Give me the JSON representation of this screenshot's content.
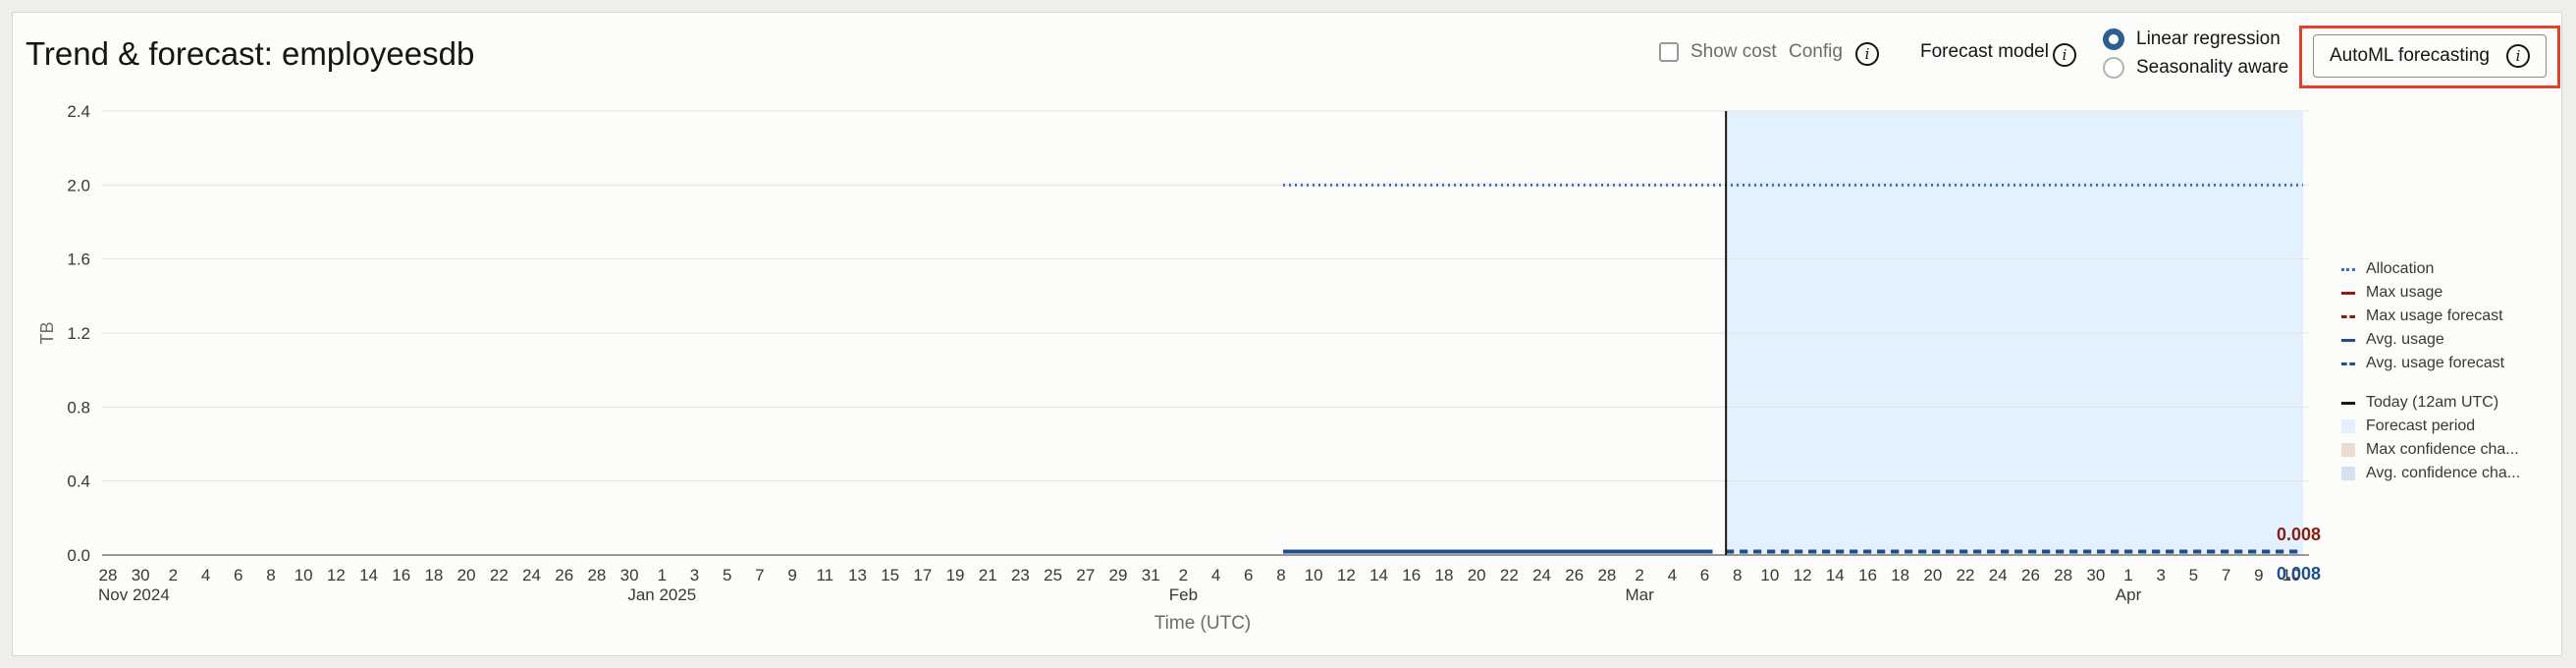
{
  "header": {
    "title": "Trend & forecast: employeesdb",
    "show_cost_label": "Show cost",
    "config_label": "Config",
    "info_glyph": "i",
    "forecast_model_label": "Forecast model",
    "radio_linear": "Linear regression",
    "radio_seasonality": "Seasonality aware",
    "automl_button": "AutoML forecasting"
  },
  "colors": {
    "allocation": "#2f6fd6",
    "max_usage": "#8b1e12",
    "avg_usage": "#1f4e8c",
    "today_line": "#161513",
    "forecast_period": "#e3f0fd",
    "max_confidence": "#eadccf",
    "avg_confidence": "#d6e1ee",
    "highlight": "#e0412d"
  },
  "chart_data": {
    "type": "line",
    "ylabel": "TB",
    "xlabel": "Time (UTC)",
    "ylim": [
      0,
      2.4
    ],
    "y_ticks": [
      "2.4",
      "2.0",
      "1.6",
      "1.2",
      "0.8",
      "0.4",
      "0.0"
    ],
    "y_tick_values": [
      2.4,
      2.0,
      1.6,
      1.2,
      0.8,
      0.4,
      0.0
    ],
    "x_ticks": [
      "28",
      "30",
      "2",
      "4",
      "6",
      "8",
      "10",
      "12",
      "14",
      "16",
      "18",
      "20",
      "22",
      "24",
      "26",
      "28",
      "30",
      "1",
      "3",
      "5",
      "7",
      "9",
      "11",
      "13",
      "15",
      "17",
      "19",
      "21",
      "23",
      "25",
      "27",
      "29",
      "31",
      "2",
      "4",
      "6",
      "8",
      "10",
      "12",
      "14",
      "16",
      "18",
      "20",
      "22",
      "24",
      "26",
      "28",
      "2",
      "4",
      "6",
      "8",
      "10",
      "12",
      "14",
      "16",
      "18",
      "20",
      "22",
      "24",
      "26",
      "28",
      "30",
      "1",
      "3",
      "5",
      "7",
      "9",
      "10"
    ],
    "month_labels": [
      {
        "text": "Nov 2024",
        "tick": 0
      },
      {
        "text": "Jan 2025",
        "tick": 17
      },
      {
        "text": "Feb",
        "tick": 33
      },
      {
        "text": "Mar",
        "tick": 47
      },
      {
        "text": "Apr",
        "tick": 62
      }
    ],
    "x_start": "2024-10-28",
    "today": "2025-02-26",
    "x_end": "2025-04-10",
    "series": [
      {
        "name": "Allocation",
        "style": "dotted",
        "x_from": "2025-01-24",
        "x_to": "2025-04-10",
        "value": 2.0
      },
      {
        "name": "Max usage",
        "style": "solid",
        "x_from": "2025-01-24",
        "x_to": "2025-02-25",
        "value": 0.008
      },
      {
        "name": "Avg. usage",
        "style": "solid",
        "x_from": "2025-01-24",
        "x_to": "2025-02-25",
        "value": 0.008
      },
      {
        "name": "Max usage forecast",
        "style": "dashed",
        "x_from": "2025-02-26",
        "x_to": "2025-04-10",
        "value": 0.008
      },
      {
        "name": "Avg. usage forecast",
        "style": "dashed",
        "x_from": "2025-02-26",
        "x_to": "2025-04-10",
        "value": 0.008
      }
    ],
    "end_labels": {
      "max": "0.008",
      "avg": "0.008"
    },
    "legend": [
      {
        "label": "Allocation",
        "kind": "dotted",
        "color": "#2f6fd6"
      },
      {
        "label": "Max usage",
        "kind": "solid",
        "color": "#8b1e12"
      },
      {
        "label": "Max usage forecast",
        "kind": "dashed",
        "color": "#8b1e12"
      },
      {
        "label": "Avg. usage",
        "kind": "solid",
        "color": "#1f4e8c"
      },
      {
        "label": "Avg. usage forecast",
        "kind": "dashed",
        "color": "#1f4e8c"
      },
      {
        "label": "Today (12am UTC)",
        "kind": "solid",
        "color": "#161513"
      },
      {
        "label": "Forecast period",
        "kind": "box",
        "color": "#e3f0fd"
      },
      {
        "label": "Max confidence cha...",
        "kind": "box",
        "color": "#eadccf"
      },
      {
        "label": "Avg. confidence cha...",
        "kind": "box",
        "color": "#d6e1ee"
      }
    ],
    "legend_placement": "right",
    "grid": true
  }
}
